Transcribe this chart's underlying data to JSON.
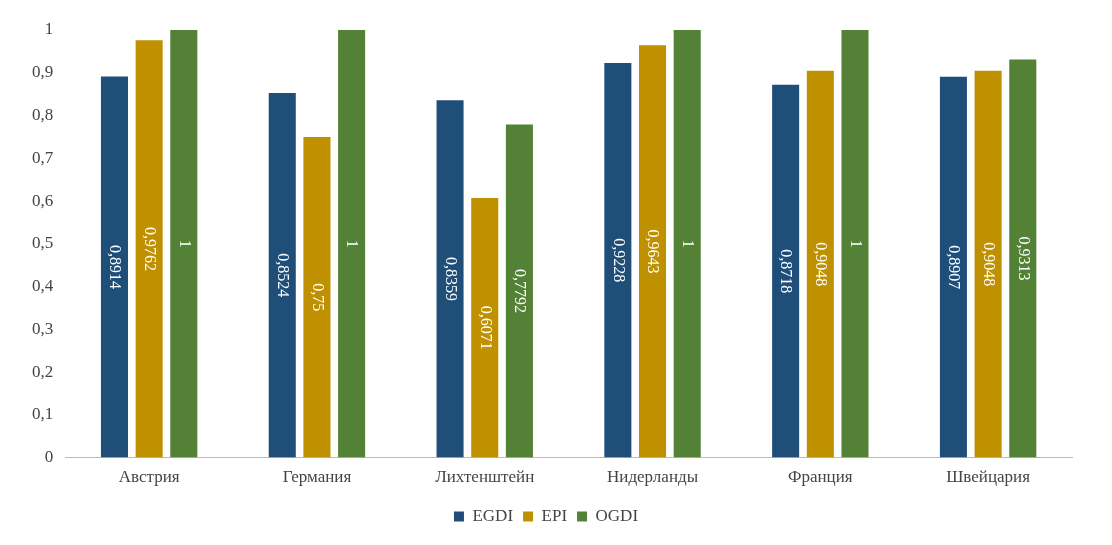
{
  "chart_data": {
    "type": "bar",
    "categories": [
      "Австрия",
      "Германия",
      "Лихтенштейн",
      "Нидерланды",
      "Франция",
      "Швейцария"
    ],
    "series": [
      {
        "name": "EGDI",
        "color": "#1f4e79",
        "values": [
          0.8914,
          0.8524,
          0.8359,
          0.9228,
          0.8718,
          0.8907
        ],
        "value_labels": [
          "0,8914",
          "0,8524",
          "0,8359",
          "0,9228",
          "0,8718",
          "0,8907"
        ]
      },
      {
        "name": "EPI",
        "color": "#bf9000",
        "values": [
          0.9762,
          0.75,
          0.6071,
          0.9643,
          0.9048,
          0.9048
        ],
        "value_labels": [
          "0,9762",
          "0,75",
          "0,6071",
          "0,9643",
          "0,9048",
          "0,9048"
        ]
      },
      {
        "name": "OGDI",
        "color": "#538135",
        "values": [
          1,
          1,
          0.7792,
          1,
          1,
          0.9313
        ],
        "value_labels": [
          "1",
          "1",
          "0,7792",
          "1",
          "1",
          "0,9313"
        ]
      }
    ],
    "ylim": [
      0,
      1
    ],
    "yticks": [
      0,
      {
        "value": 0.1,
        "label": "0,1"
      },
      {
        "value": 0.2,
        "label": "0,2"
      },
      {
        "value": 0.3,
        "label": "0,3"
      },
      {
        "value": 0.4,
        "label": "0,4"
      },
      {
        "value": 0.5,
        "label": "0,5"
      },
      {
        "value": 0.6,
        "label": "0,6"
      },
      {
        "value": 0.7,
        "label": "0,7"
      },
      {
        "value": 0.8,
        "label": "0,8"
      },
      {
        "value": 0.9,
        "label": "0,9"
      },
      1
    ],
    "grid": false,
    "legend": "bottom"
  }
}
